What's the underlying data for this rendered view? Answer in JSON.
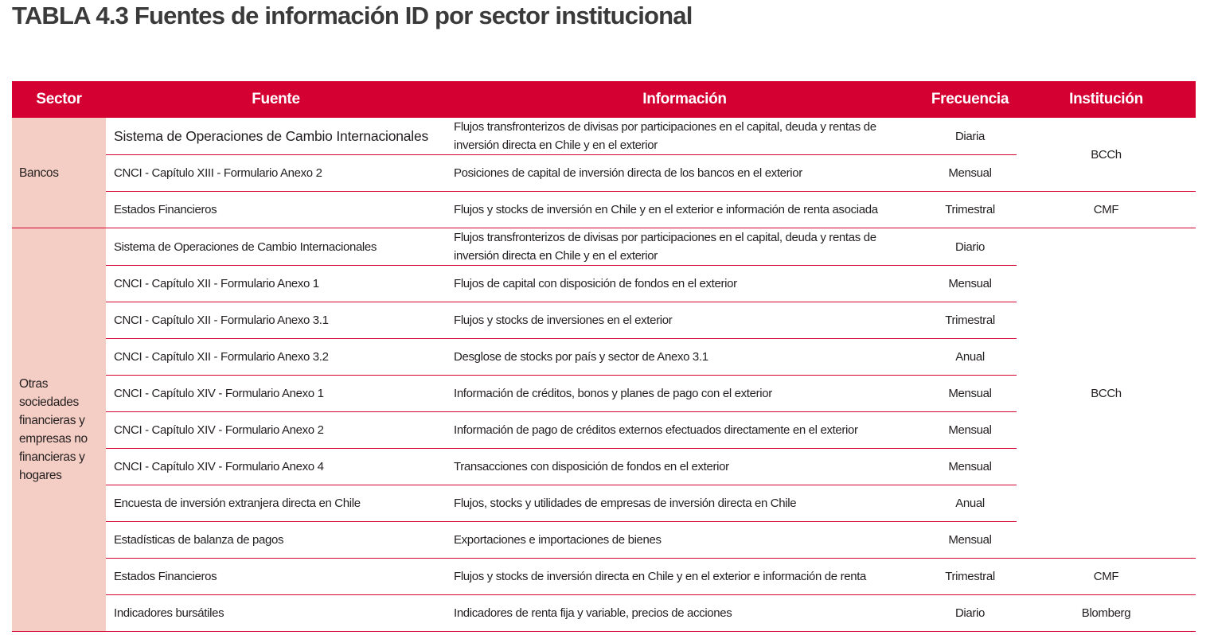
{
  "title": "TABLA 4.3 Fuentes de información ID por sector institucional",
  "headers": [
    "Sector",
    "Fuente",
    "Información",
    "Frecuencia",
    "Institución"
  ],
  "colors": {
    "header": "#d50032",
    "sector_bg": "#f4cdc4",
    "rule": "#d50032"
  },
  "groups": [
    {
      "sector": "Bancos",
      "rows": [
        {
          "fuente": "Sistema de Operaciones de Cambio Internacionales",
          "info": "Flujos transfronterizos de divisas por participaciones en el capital, deuda y rentas de inversión directa en Chile y en el exterior",
          "frecuencia": "Diaria"
        },
        {
          "fuente": "CNCI - Capítulo  XIII - Formulario Anexo 2",
          "info": "Posiciones de capital de inversión directa de los bancos en el exterior",
          "frecuencia": "Mensual"
        },
        {
          "fuente": "Estados Financieros",
          "info": "Flujos y stocks de inversión en Chile y en el exterior e información de renta asociada",
          "frecuencia": "Trimestral"
        }
      ],
      "instituciones": [
        "BCCh",
        "CMF"
      ]
    },
    {
      "sector": "Otras sociedades financieras y empresas no financieras y hogares",
      "rows": [
        {
          "fuente": "Sistema de Operaciones de Cambio Internacionales",
          "info": "Flujos transfronterizos de divisas por participaciones en el capital, deuda y rentas de inversión directa en Chile y en el exterior",
          "frecuencia": "Diario"
        },
        {
          "fuente": "CNCI - Capítulo  XII - Formulario Anexo 1",
          "info": "Flujos de capital con disposición de fondos en el exterior",
          "frecuencia": "Mensual"
        },
        {
          "fuente": "CNCI - Capítulo  XII - Formulario Anexo 3.1",
          "info": "Flujos y stocks de inversiones en el exterior",
          "frecuencia": "Trimestral"
        },
        {
          "fuente": "CNCI - Capítulo  XII - Formulario Anexo 3.2",
          "info": "Desglose de stocks por país y sector de Anexo 3.1",
          "frecuencia": "Anual"
        },
        {
          "fuente": "CNCI - Capítulo  XIV - Formulario Anexo 1",
          "info": "Información de créditos, bonos y planes de pago con el exterior",
          "frecuencia": "Mensual"
        },
        {
          "fuente": "CNCI - Capítulo  XIV - Formulario Anexo 2",
          "info": "Información de pago de créditos externos efectuados directamente en el exterior",
          "frecuencia": "Mensual"
        },
        {
          "fuente": "CNCI - Capítulo  XIV - Formulario Anexo 4",
          "info": "Transacciones con disposición de fondos en el exterior",
          "frecuencia": "Mensual"
        },
        {
          "fuente": "Encuesta de inversión extranjera directa en Chile",
          "info": "Flujos, stocks  y utilidades de empresas de inversión directa en Chile",
          "frecuencia": "Anual"
        },
        {
          "fuente": "Estadísticas de balanza de pagos",
          "info": "Exportaciones e importaciones de bienes",
          "frecuencia": "Mensual"
        },
        {
          "fuente": "Estados Financieros",
          "info": "Flujos y stocks de inversión directa en Chile y en el exterior e información de renta",
          "frecuencia": "Trimestral"
        },
        {
          "fuente": "Indicadores bursátiles",
          "info": "Indicadores de renta fija y variable, precios de acciones",
          "frecuencia": "Diario"
        }
      ],
      "instituciones": [
        "BCCh",
        "CMF",
        "Blomberg"
      ]
    }
  ]
}
